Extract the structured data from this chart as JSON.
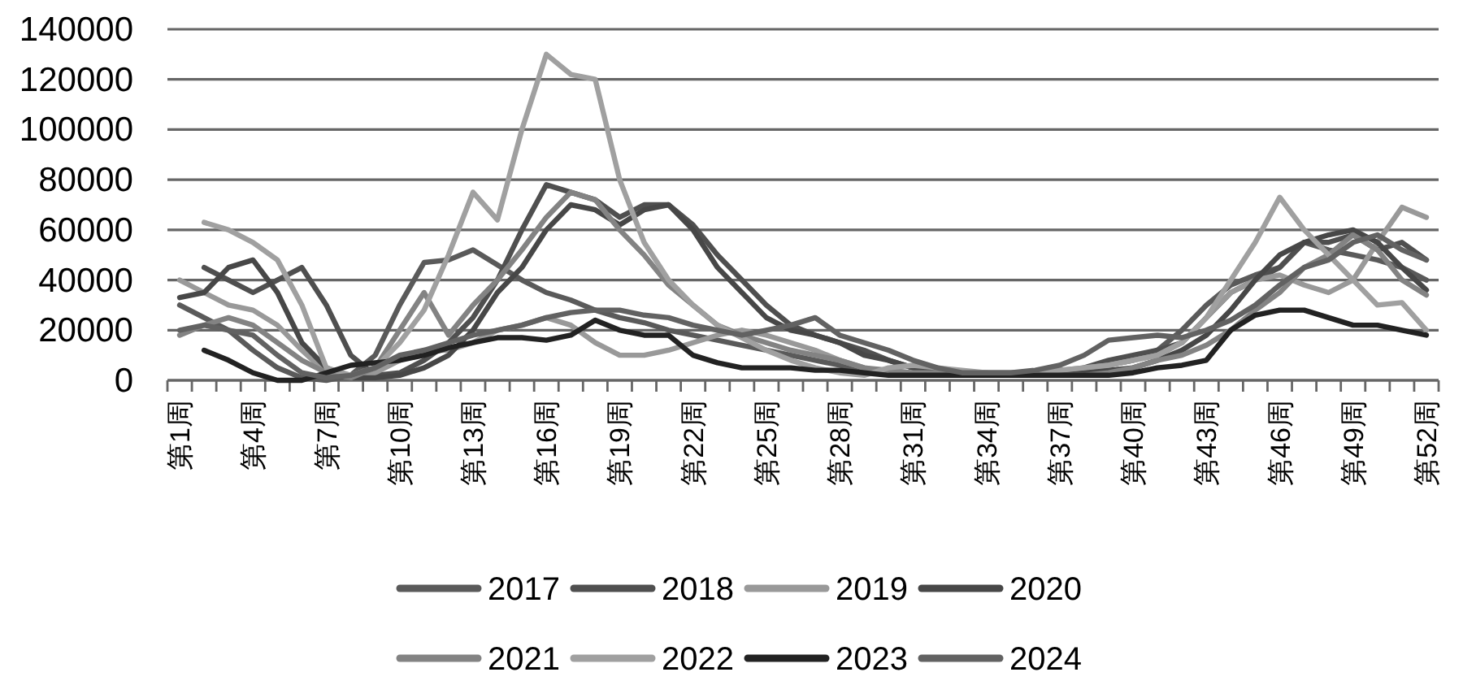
{
  "chart_data": {
    "type": "line",
    "categories": [
      "第1周",
      null,
      null,
      "第4周",
      null,
      null,
      "第7周",
      null,
      null,
      "第10周",
      null,
      null,
      "第13周",
      null,
      null,
      "第16周",
      null,
      null,
      "第19周",
      null,
      null,
      "第22周",
      null,
      null,
      "第25周",
      null,
      null,
      "第28周",
      null,
      null,
      "第31周",
      null,
      null,
      "第34周",
      null,
      null,
      "第37周",
      null,
      null,
      "第40周",
      null,
      null,
      "第43周",
      null,
      null,
      "第46周",
      null,
      null,
      "第49周",
      null,
      null,
      "第52周"
    ],
    "series": [
      {
        "name": "2017",
        "color": "#5a5a5a",
        "values": [
          30000,
          25000,
          20000,
          12000,
          5000,
          1000,
          0,
          2000,
          10000,
          30000,
          47000,
          48000,
          52000,
          46000,
          40000,
          35000,
          32000,
          28000,
          25000,
          23000,
          20000,
          18000,
          16000,
          14000,
          12000,
          10000,
          8000,
          6000,
          4000,
          3000,
          2000,
          2000,
          2000,
          2000,
          2000,
          2000,
          3000,
          4000,
          6000,
          8000,
          12000,
          20000,
          30000,
          38000,
          42000,
          45000,
          55000,
          52000,
          50000,
          48000,
          45000,
          40000
        ]
      },
      {
        "name": "2018",
        "color": "#4f4f4f",
        "values": [
          null,
          45000,
          40000,
          35000,
          40000,
          45000,
          30000,
          10000,
          2000,
          3000,
          8000,
          15000,
          25000,
          40000,
          60000,
          78000,
          75000,
          72000,
          65000,
          70000,
          70000,
          62000,
          50000,
          40000,
          30000,
          22000,
          18000,
          15000,
          12000,
          8000,
          5000,
          3000,
          2000,
          2000,
          2000,
          2000,
          3000,
          5000,
          8000,
          10000,
          12000,
          15000,
          25000,
          35000,
          40000,
          45000,
          55000,
          55000,
          58000,
          52000,
          55000,
          48000
        ]
      },
      {
        "name": "2019",
        "color": "#999999",
        "values": [
          40000,
          35000,
          30000,
          28000,
          22000,
          12000,
          3000,
          2000,
          3000,
          8000,
          12000,
          12000,
          15000,
          20000,
          22000,
          25000,
          22000,
          15000,
          10000,
          10000,
          12000,
          15000,
          18000,
          20000,
          18000,
          15000,
          12000,
          8000,
          5000,
          3000,
          2000,
          2000,
          3000,
          3000,
          3000,
          3000,
          4000,
          5000,
          6000,
          8000,
          10000,
          15000,
          25000,
          35000,
          40000,
          42000,
          38000,
          35000,
          40000,
          55000,
          69000,
          65000
        ]
      },
      {
        "name": "2020",
        "color": "#474747",
        "values": [
          33000,
          35000,
          45000,
          48000,
          35000,
          15000,
          5000,
          1000,
          1000,
          2000,
          5000,
          10000,
          20000,
          35000,
          45000,
          60000,
          70000,
          68000,
          62000,
          68000,
          70000,
          60000,
          45000,
          35000,
          25000,
          20000,
          18000,
          15000,
          10000,
          8000,
          5000,
          3000,
          2000,
          2000,
          2000,
          2000,
          2000,
          3000,
          4000,
          5000,
          8000,
          12000,
          18000,
          28000,
          40000,
          50000,
          55000,
          58000,
          60000,
          55000,
          45000,
          36000
        ]
      },
      {
        "name": "2021",
        "color": "#838383",
        "values": [
          18000,
          22000,
          25000,
          22000,
          15000,
          8000,
          3000,
          1000,
          5000,
          20000,
          35000,
          18000,
          30000,
          40000,
          52000,
          65000,
          75000,
          72000,
          60000,
          50000,
          38000,
          30000,
          22000,
          18000,
          15000,
          12000,
          10000,
          8000,
          5000,
          4000,
          3000,
          3000,
          3000,
          3000,
          2000,
          2000,
          2000,
          2000,
          3000,
          5000,
          8000,
          10000,
          14000,
          20000,
          28000,
          35000,
          45000,
          50000,
          58000,
          52000,
          40000,
          34000
        ]
      },
      {
        "name": "2022",
        "color": "#a0a0a0",
        "values": [
          null,
          63000,
          60000,
          55000,
          48000,
          30000,
          5000,
          2000,
          5000,
          15000,
          28000,
          50000,
          75000,
          64000,
          100000,
          130000,
          122000,
          120000,
          80000,
          55000,
          40000,
          30000,
          22000,
          17000,
          12000,
          8000,
          5000,
          3000,
          2000,
          5000,
          6000,
          5000,
          4000,
          3000,
          3000,
          3000,
          4000,
          5000,
          6000,
          8000,
          10000,
          15000,
          25000,
          40000,
          55000,
          73000,
          60000,
          50000,
          40000,
          30000,
          31000,
          20000
        ]
      },
      {
        "name": "2023",
        "color": "#222222",
        "values": [
          null,
          12000,
          8000,
          3000,
          0,
          0,
          3000,
          6000,
          7000,
          8000,
          10000,
          13000,
          15000,
          17000,
          17000,
          16000,
          18000,
          24000,
          20000,
          18000,
          18000,
          10000,
          7000,
          5000,
          5000,
          5000,
          4000,
          4000,
          3000,
          2000,
          2000,
          2000,
          2000,
          2000,
          2000,
          2000,
          2000,
          2000,
          2000,
          3000,
          5000,
          6000,
          8000,
          20000,
          26000,
          28000,
          28000,
          25000,
          22000,
          22000,
          20000,
          18000
        ]
      },
      {
        "name": "2024",
        "color": "#626262",
        "values": [
          20000,
          22000,
          20000,
          18000,
          10000,
          3000,
          1000,
          2000,
          5000,
          10000,
          12000,
          15000,
          18000,
          20000,
          22000,
          25000,
          27000,
          28000,
          28000,
          26000,
          25000,
          22000,
          20000,
          18000,
          20000,
          22000,
          25000,
          18000,
          15000,
          12000,
          8000,
          5000,
          3000,
          3000,
          3000,
          4000,
          6000,
          10000,
          16000,
          17000,
          18000,
          17000,
          20000,
          24000,
          30000,
          38000,
          45000,
          48000,
          55000,
          58000,
          52000,
          48000
        ]
      }
    ],
    "ylim": [
      0,
      140000
    ],
    "yticks": [
      0,
      20000,
      40000,
      60000,
      80000,
      100000,
      120000,
      140000
    ],
    "grid": "y",
    "legend": "bottom"
  }
}
